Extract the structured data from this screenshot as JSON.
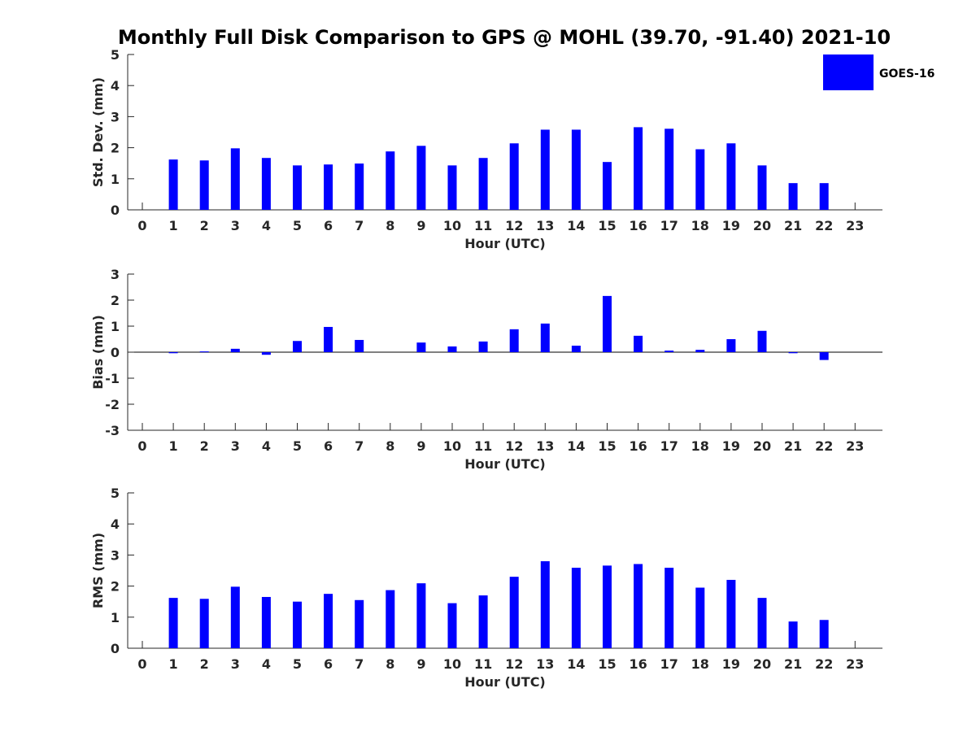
{
  "chart_data": [
    {
      "type": "bar",
      "title": "Monthly Full Disk Comparison to GPS @ MOHL (39.70, -91.40) 2021-10",
      "xlabel": "Hour (UTC)",
      "ylabel": "Std. Dev. (mm)",
      "categories": [
        "0",
        "1",
        "2",
        "3",
        "4",
        "5",
        "6",
        "7",
        "8",
        "9",
        "10",
        "11",
        "12",
        "13",
        "14",
        "15",
        "16",
        "17",
        "18",
        "19",
        "20",
        "21",
        "22",
        "23"
      ],
      "yticks": [
        "0",
        "1",
        "2",
        "3",
        "4",
        "5"
      ],
      "ylim": [
        0,
        5
      ],
      "series": [
        {
          "name": "GOES-16",
          "color": "#0000ff",
          "values": [
            null,
            1.62,
            1.59,
            1.98,
            1.67,
            1.43,
            1.46,
            1.49,
            1.88,
            2.06,
            1.43,
            1.67,
            2.14,
            2.58,
            2.58,
            1.54,
            2.66,
            2.61,
            1.95,
            2.14,
            1.43,
            0.86,
            0.86,
            null
          ]
        }
      ],
      "legend": "top-right"
    },
    {
      "type": "bar",
      "xlabel": "Hour (UTC)",
      "ylabel": "Bias (mm)",
      "categories": [
        "0",
        "1",
        "2",
        "3",
        "4",
        "5",
        "6",
        "7",
        "8",
        "9",
        "10",
        "11",
        "12",
        "13",
        "14",
        "15",
        "16",
        "17",
        "18",
        "19",
        "20",
        "21",
        "22",
        "23"
      ],
      "yticks": [
        "-3",
        "-2",
        "-1",
        "0",
        "1",
        "2",
        "3"
      ],
      "ylim": [
        -3,
        3
      ],
      "series": [
        {
          "name": "GOES-16",
          "color": "#0000ff",
          "values": [
            null,
            -0.04,
            0.03,
            0.13,
            -0.1,
            0.43,
            0.97,
            0.47,
            null,
            0.37,
            0.22,
            0.41,
            0.88,
            1.1,
            0.25,
            2.16,
            0.63,
            0.06,
            0.09,
            0.5,
            0.82,
            -0.04,
            -0.3,
            null
          ]
        }
      ]
    },
    {
      "type": "bar",
      "xlabel": "Hour (UTC)",
      "ylabel": "RMS (mm)",
      "categories": [
        "0",
        "1",
        "2",
        "3",
        "4",
        "5",
        "6",
        "7",
        "8",
        "9",
        "10",
        "11",
        "12",
        "13",
        "14",
        "15",
        "16",
        "17",
        "18",
        "19",
        "20",
        "21",
        "22",
        "23"
      ],
      "yticks": [
        "0",
        "1",
        "2",
        "3",
        "4",
        "5"
      ],
      "ylim": [
        0,
        5
      ],
      "series": [
        {
          "name": "GOES-16",
          "color": "#0000ff",
          "values": [
            null,
            1.62,
            1.59,
            1.98,
            1.65,
            1.5,
            1.75,
            1.55,
            1.87,
            2.09,
            1.45,
            1.7,
            2.3,
            2.8,
            2.59,
            2.66,
            2.71,
            2.59,
            1.95,
            2.2,
            1.62,
            0.86,
            0.91,
            null
          ]
        }
      ]
    }
  ],
  "legend": {
    "label": "GOES-16",
    "color": "#0000ff"
  }
}
